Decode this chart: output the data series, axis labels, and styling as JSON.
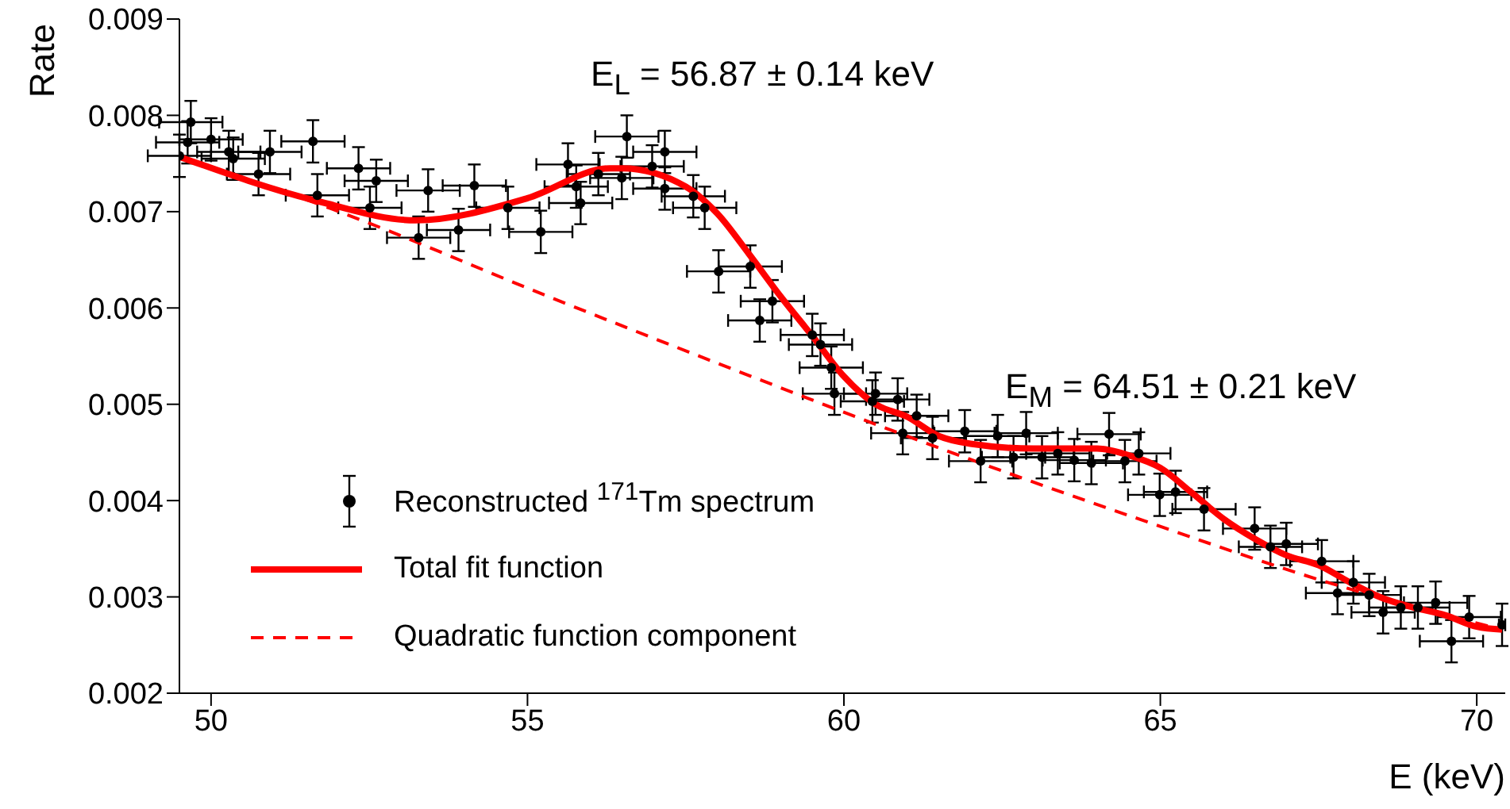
{
  "chart_data": {
    "type": "scatter",
    "xlabel": "E (keV)",
    "ylabel": "Rate",
    "xlim": [
      49.5,
      70.45
    ],
    "xticks": [
      50,
      55,
      60,
      65,
      70
    ],
    "ylim": [
      0.002,
      0.009
    ],
    "yticks": [
      0.002,
      0.003,
      0.004,
      0.005,
      0.006,
      0.007,
      0.008,
      0.009
    ],
    "legend": "bottom left",
    "grid": false,
    "annotations": [
      "E$_{L}$ = 56.87 ± 0.14 keV",
      "E$_{M}$ = 64.51 ± 0.21 keV"
    ],
    "series": [
      {
        "name": "Reconstructed $^{171}$Tm spectrum",
        "marker": "circle",
        "color": "#000000",
        "x": [
          49.5,
          49.63,
          49.68,
          50.0,
          50.28,
          50.35,
          50.75,
          50.93,
          51.61,
          51.68,
          52.33,
          52.51,
          52.61,
          53.28,
          53.43,
          53.91,
          54.16,
          54.69,
          55.21,
          55.64,
          55.77,
          55.84,
          56.12,
          56.49,
          56.57,
          56.97,
          57.17,
          57.17,
          57.62,
          57.8,
          58.02,
          58.52,
          58.67,
          58.87,
          59.5,
          59.63,
          59.8,
          59.85,
          60.45,
          60.5,
          60.85,
          60.93,
          61.15,
          61.4,
          61.91,
          62.16,
          62.43,
          62.68,
          62.88,
          63.13,
          63.38,
          63.64,
          63.91,
          64.19,
          64.44,
          64.66,
          64.99,
          65.24,
          65.69,
          66.49,
          66.74,
          66.99,
          67.55,
          67.8,
          68.05,
          68.3,
          68.52,
          68.8,
          69.07,
          69.35,
          69.6,
          69.88,
          70.4
        ],
        "values": [
          0.00758,
          0.00772,
          0.00793,
          0.00775,
          0.00762,
          0.00755,
          0.00739,
          0.00762,
          0.00773,
          0.00717,
          0.00745,
          0.00704,
          0.00732,
          0.00673,
          0.00722,
          0.00681,
          0.00727,
          0.00704,
          0.00679,
          0.00749,
          0.00726,
          0.00709,
          0.00739,
          0.00735,
          0.00778,
          0.00747,
          0.00762,
          0.00724,
          0.00716,
          0.00704,
          0.00638,
          0.00643,
          0.00587,
          0.00607,
          0.00572,
          0.00562,
          0.00538,
          0.00511,
          0.00503,
          0.00511,
          0.00505,
          0.0047,
          0.00488,
          0.00465,
          0.00472,
          0.00441,
          0.00467,
          0.00445,
          0.0047,
          0.00445,
          0.00449,
          0.00442,
          0.00439,
          0.00469,
          0.00441,
          0.00449,
          0.00406,
          0.00409,
          0.00391,
          0.00371,
          0.00352,
          0.00355,
          0.00337,
          0.00304,
          0.00315,
          0.00302,
          0.00284,
          0.00289,
          0.00289,
          0.00294,
          0.00254,
          0.00279,
          0.00271
        ],
        "errors": [
          0.00022,
          0.00022,
          0.00022,
          0.00022,
          0.00022,
          0.00022,
          0.00022,
          0.00022,
          0.00022,
          0.00022,
          0.00022,
          0.00022,
          0.00022,
          0.00022,
          0.00022,
          0.00022,
          0.00022,
          0.00022,
          0.00022,
          0.00022,
          0.00022,
          0.00022,
          0.00022,
          0.00022,
          0.00022,
          0.00022,
          0.00022,
          0.00022,
          0.00022,
          0.00022,
          0.00022,
          0.00022,
          0.00022,
          0.00022,
          0.00022,
          0.00022,
          0.00022,
          0.00022,
          0.00022,
          0.00022,
          0.00022,
          0.00022,
          0.00022,
          0.00022,
          0.00022,
          0.00022,
          0.00022,
          0.00022,
          0.00022,
          0.00022,
          0.00022,
          0.00022,
          0.00022,
          0.00022,
          0.00022,
          0.00022,
          0.00022,
          0.00022,
          0.00022,
          0.00022,
          0.00022,
          0.00022,
          0.00022,
          0.00022,
          0.00022,
          0.00022,
          0.00022,
          0.00022,
          0.00022,
          0.00022,
          0.00022,
          0.00022,
          0.00022
        ],
        "xerrors": [
          0.5,
          0.5,
          0.5,
          0.5,
          0.5,
          0.5,
          0.5,
          0.5,
          0.5,
          0.5,
          0.5,
          0.5,
          0.5,
          0.5,
          0.5,
          0.5,
          0.5,
          0.5,
          0.5,
          0.5,
          0.5,
          0.5,
          0.5,
          0.5,
          0.5,
          0.5,
          0.5,
          0.5,
          0.5,
          0.5,
          0.5,
          0.5,
          0.5,
          0.5,
          0.5,
          0.5,
          0.5,
          0.5,
          0.5,
          0.5,
          0.5,
          0.5,
          0.5,
          0.5,
          0.5,
          0.5,
          0.5,
          0.5,
          0.5,
          0.5,
          0.5,
          0.5,
          0.5,
          0.5,
          0.5,
          0.5,
          0.5,
          0.5,
          0.5,
          0.5,
          0.5,
          0.5,
          0.5,
          0.5,
          0.5,
          0.5,
          0.5,
          0.5,
          0.5,
          0.5,
          0.5,
          0.5,
          0.05
        ]
      },
      {
        "name": "Total fit function",
        "type": "line",
        "color": "#ff0000",
        "line_style": "solid",
        "x": [
          49.5,
          51.68,
          53.23,
          55.0,
          56.3,
          56.5,
          57.5,
          58.0,
          58.5,
          59.0,
          59.5,
          60.0,
          60.5,
          61.0,
          61.5,
          62.0,
          63.0,
          64.0,
          64.5,
          65.0,
          65.5,
          66.0,
          66.5,
          67.0,
          67.5,
          68.0,
          68.5,
          69.0,
          69.5,
          70.0,
          70.4
        ],
        "values": [
          0.00757,
          0.00711,
          0.00691,
          0.00714,
          0.00745,
          0.00745,
          0.00726,
          0.00698,
          0.00656,
          0.00612,
          0.00571,
          0.00529,
          0.005,
          0.00487,
          0.00467,
          0.00459,
          0.00454,
          0.00454,
          0.00447,
          0.00434,
          0.00408,
          0.00381,
          0.0036,
          0.00343,
          0.00333,
          0.00315,
          0.00299,
          0.00289,
          0.00281,
          0.00269,
          0.00266
        ]
      },
      {
        "name": "Quadratic function component",
        "type": "line",
        "color": "#ff0000",
        "line_style": "dashed",
        "x": [
          49.5,
          51.9,
          55.4,
          58.3,
          61.2,
          64.7,
          67.7,
          70.4
        ],
        "values": [
          0.00757,
          0.00703,
          0.0061,
          0.00535,
          0.00462,
          0.0038,
          0.00314,
          0.00266
        ]
      }
    ]
  }
}
